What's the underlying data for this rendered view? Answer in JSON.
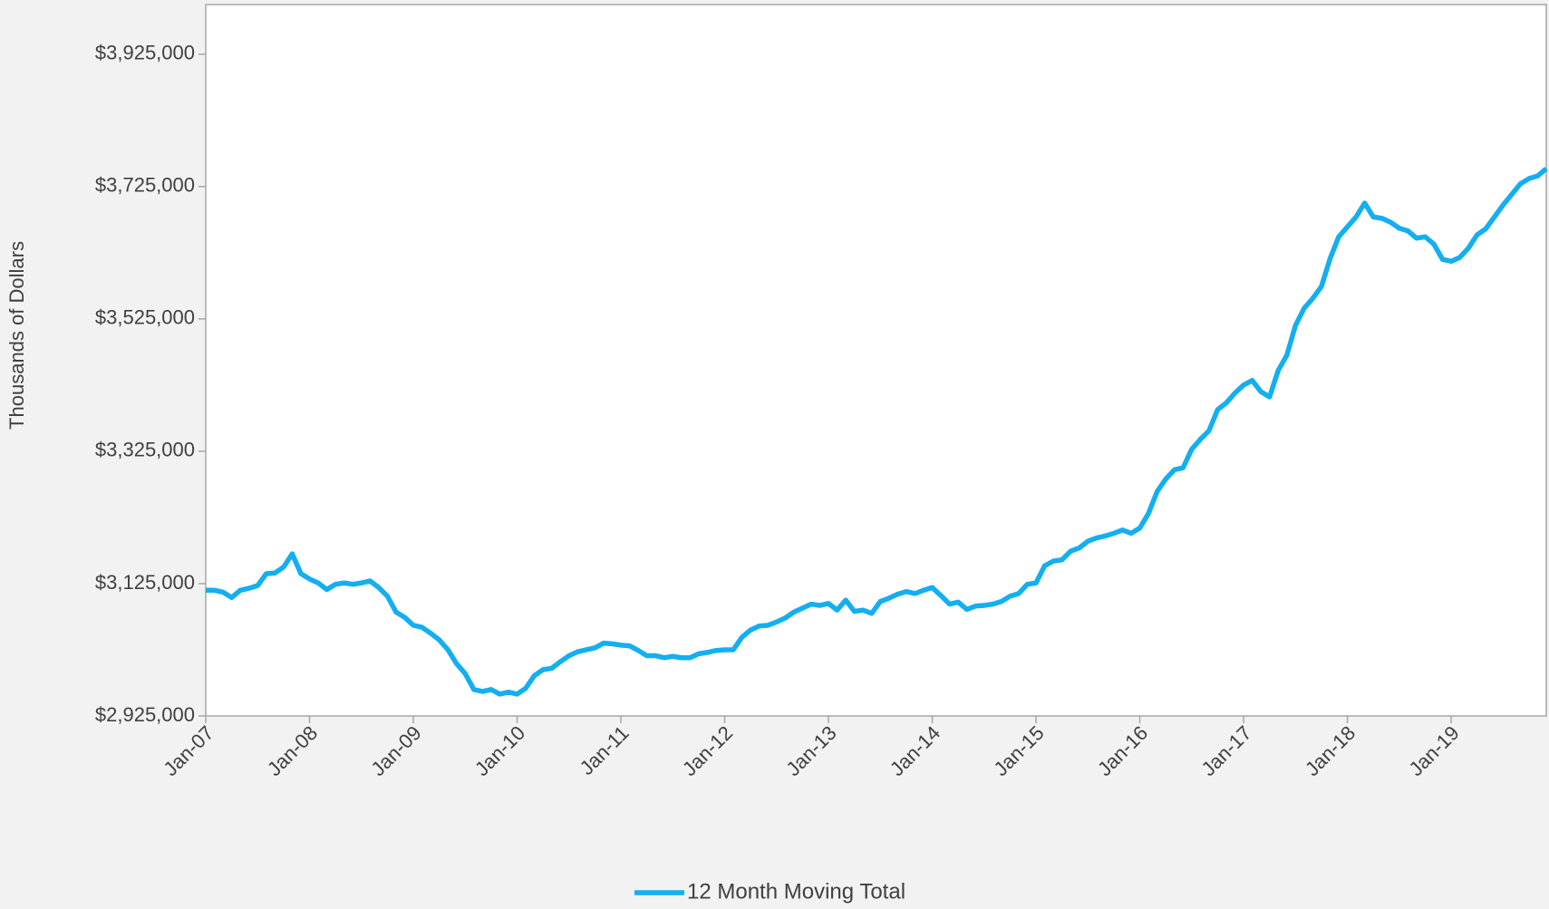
{
  "chart_data": {
    "type": "line",
    "ylabel": "Thousands of Dollars",
    "categories": [
      "Jan-07",
      null,
      null,
      null,
      null,
      null,
      null,
      null,
      null,
      null,
      null,
      null,
      "Jan-08",
      null,
      null,
      null,
      null,
      null,
      null,
      null,
      null,
      null,
      null,
      null,
      "Jan-09",
      null,
      null,
      null,
      null,
      null,
      null,
      null,
      null,
      null,
      null,
      null,
      "Jan-10",
      null,
      null,
      null,
      null,
      null,
      null,
      null,
      null,
      null,
      null,
      null,
      "Jan-11",
      null,
      null,
      null,
      null,
      null,
      null,
      null,
      null,
      null,
      null,
      null,
      "Jan-12",
      null,
      null,
      null,
      null,
      null,
      null,
      null,
      null,
      null,
      null,
      null,
      "Jan-13",
      null,
      null,
      null,
      null,
      null,
      null,
      null,
      null,
      null,
      null,
      null,
      "Jan-14",
      null,
      null,
      null,
      null,
      null,
      null,
      null,
      null,
      null,
      null,
      null,
      "Jan-15",
      null,
      null,
      null,
      null,
      null,
      null,
      null,
      null,
      null,
      null,
      null,
      "Jan-16",
      null,
      null,
      null,
      null,
      null,
      null,
      null,
      null,
      null,
      null,
      null,
      "Jan-17",
      null,
      null,
      null,
      null,
      null,
      null,
      null,
      null,
      null,
      null,
      null,
      "Jan-18",
      null,
      null,
      null,
      null,
      null,
      null,
      null,
      null,
      null,
      null,
      null,
      "Jan-19",
      null,
      null,
      null,
      null,
      null,
      null,
      null,
      null,
      null,
      null,
      null
    ],
    "series": [
      {
        "name": "12 Month Moving Total",
        "color": "#13aff0",
        "values": [
          3115000,
          3115000,
          3112000,
          3104000,
          3115000,
          3118000,
          3122000,
          3140000,
          3141000,
          3150000,
          3170000,
          3140000,
          3132000,
          3126000,
          3116000,
          3124000,
          3126000,
          3124000,
          3126000,
          3129000,
          3119000,
          3106000,
          3082000,
          3074000,
          3062000,
          3059000,
          3050000,
          3040000,
          3025000,
          3004000,
          2989000,
          2965000,
          2962000,
          2965000,
          2958000,
          2961000,
          2958000,
          2967000,
          2986000,
          2995000,
          2997000,
          3007000,
          3016000,
          3022000,
          3025000,
          3028000,
          3035000,
          3034000,
          3032000,
          3031000,
          3024000,
          3016000,
          3016000,
          3013000,
          3015000,
          3013000,
          3013000,
          3019000,
          3021000,
          3024000,
          3025000,
          3025000,
          3044000,
          3055000,
          3061000,
          3062000,
          3067000,
          3073000,
          3082000,
          3088000,
          3094000,
          3092000,
          3095000,
          3085000,
          3100000,
          3083000,
          3085000,
          3080000,
          3098000,
          3103000,
          3109000,
          3113000,
          3110000,
          3115000,
          3119000,
          3107000,
          3094000,
          3097000,
          3086000,
          3091000,
          3092000,
          3094000,
          3098000,
          3106000,
          3110000,
          3124000,
          3126000,
          3152000,
          3159000,
          3161000,
          3174000,
          3179000,
          3189000,
          3194000,
          3197000,
          3201000,
          3206000,
          3201000,
          3209000,
          3231000,
          3264000,
          3283000,
          3297000,
          3300000,
          3328000,
          3343000,
          3356000,
          3388000,
          3398000,
          3413000,
          3425000,
          3432000,
          3415000,
          3407000,
          3447000,
          3470000,
          3515000,
          3541000,
          3556000,
          3574000,
          3616000,
          3649000,
          3664000,
          3679000,
          3700000,
          3679000,
          3677000,
          3671000,
          3662000,
          3658000,
          3647000,
          3649000,
          3638000,
          3615000,
          3612000,
          3618000,
          3632000,
          3652000,
          3661000,
          3679000,
          3697000,
          3713000,
          3729000,
          3737000,
          3741000,
          3752000
        ]
      }
    ],
    "ylim": [
      2925000,
      4000000
    ],
    "yticks": [
      {
        "value": 2925000,
        "label": "$2,925,000"
      },
      {
        "value": 3125000,
        "label": "$3,125,000"
      },
      {
        "value": 3325000,
        "label": "$3,325,000"
      },
      {
        "value": 3525000,
        "label": "$3,525,000"
      },
      {
        "value": 3725000,
        "label": "$3,725,000"
      },
      {
        "value": 3925000,
        "label": "$3,925,000"
      }
    ],
    "grid": false
  }
}
